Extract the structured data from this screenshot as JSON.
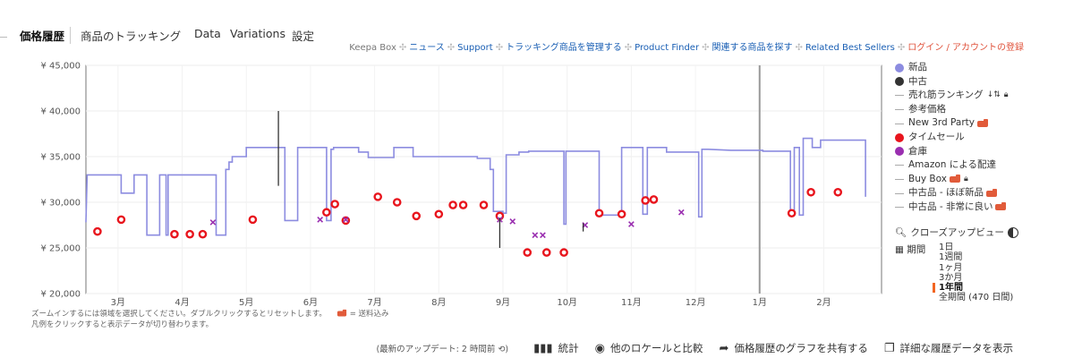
{
  "tabs": [
    "価格履歴",
    "商品のトラッキング",
    "Data",
    "Variations",
    "設定"
  ],
  "links": {
    "items": [
      {
        "label": "Keepa Box",
        "style": "gray"
      },
      {
        "label": "ニュース",
        "style": "blue"
      },
      {
        "label": "Support",
        "style": "blue"
      },
      {
        "label": "トラッキング商品を管理する",
        "style": "blue"
      },
      {
        "label": "Product Finder",
        "style": "blue"
      },
      {
        "label": "関連する商品を探す",
        "style": "blue"
      },
      {
        "label": "Related Best Sellers",
        "style": "blue"
      },
      {
        "label": "ログイン / アカウントの登録",
        "style": "red"
      }
    ],
    "separator": "✣"
  },
  "chart_data": {
    "type": "line",
    "y_tick_labels": [
      "¥ 45,000",
      "¥ 40,000",
      "¥ 35,000",
      "¥ 30,000",
      "¥ 25,000",
      "¥ 20,000"
    ],
    "y_ticks": [
      45000,
      40000,
      35000,
      30000,
      25000,
      20000
    ],
    "ylim": [
      20000,
      45000
    ],
    "x_tick_labels": [
      "3月",
      "4月",
      "5月",
      "6月",
      "7月",
      "8月",
      "9月",
      "10月",
      "11月",
      "12月",
      "1月",
      "2月"
    ],
    "x_ticks": [
      0.5,
      1.5,
      2.5,
      3.5,
      4.5,
      5.5,
      6.5,
      7.5,
      8.5,
      9.5,
      10.5,
      11.5
    ],
    "xlim": [
      0,
      12.4
    ],
    "grid": true,
    "year_divider_x": 10.5,
    "colors": {
      "new": "#8c8ce0",
      "sale": "#e8151d",
      "warehouse": "#9a2fb0",
      "used": "#333333",
      "divider": "#999999"
    },
    "series": [
      {
        "name": "新品",
        "type": "step-line",
        "points": [
          [
            0.0,
            27800
          ],
          [
            0.02,
            33000
          ],
          [
            0.55,
            33000
          ],
          [
            0.55,
            31000
          ],
          [
            0.75,
            31000
          ],
          [
            0.75,
            33000
          ],
          [
            0.95,
            33000
          ],
          [
            0.95,
            26400
          ],
          [
            1.15,
            26400
          ],
          [
            1.15,
            33000
          ],
          [
            1.25,
            33000
          ],
          [
            1.25,
            26400
          ],
          [
            1.28,
            26400
          ],
          [
            1.28,
            33000
          ],
          [
            2.03,
            33000
          ],
          [
            2.03,
            26400
          ],
          [
            2.18,
            26400
          ],
          [
            2.18,
            33600
          ],
          [
            2.23,
            33600
          ],
          [
            2.23,
            34400
          ],
          [
            2.28,
            34400
          ],
          [
            2.28,
            35000
          ],
          [
            2.5,
            35000
          ],
          [
            2.5,
            36000
          ],
          [
            3.1,
            36000
          ],
          [
            3.1,
            28000
          ],
          [
            3.3,
            28000
          ],
          [
            3.3,
            36000
          ],
          [
            3.75,
            36000
          ],
          [
            3.75,
            28000
          ],
          [
            3.82,
            28000
          ],
          [
            3.82,
            35800
          ],
          [
            3.86,
            35800
          ],
          [
            3.86,
            36000
          ],
          [
            4.25,
            36000
          ],
          [
            4.25,
            35500
          ],
          [
            4.4,
            35500
          ],
          [
            4.4,
            34900
          ],
          [
            4.8,
            34900
          ],
          [
            4.8,
            36000
          ],
          [
            5.1,
            36000
          ],
          [
            5.1,
            35000
          ],
          [
            6.1,
            35000
          ],
          [
            6.1,
            34800
          ],
          [
            6.3,
            34800
          ],
          [
            6.3,
            33600
          ],
          [
            6.35,
            33600
          ],
          [
            6.35,
            29000
          ],
          [
            6.5,
            29000
          ],
          [
            6.5,
            28800
          ],
          [
            6.55,
            28800
          ],
          [
            6.55,
            35200
          ],
          [
            6.75,
            35200
          ],
          [
            6.75,
            35500
          ],
          [
            6.9,
            35500
          ],
          [
            6.9,
            35600
          ],
          [
            7.45,
            35600
          ],
          [
            7.45,
            27600
          ],
          [
            7.48,
            27600
          ],
          [
            7.48,
            35600
          ],
          [
            8.0,
            35600
          ],
          [
            8.0,
            28600
          ],
          [
            8.35,
            28600
          ],
          [
            8.35,
            36000
          ],
          [
            8.68,
            36000
          ],
          [
            8.68,
            28700
          ],
          [
            8.75,
            28700
          ],
          [
            8.75,
            36000
          ],
          [
            9.05,
            36000
          ],
          [
            9.05,
            35500
          ],
          [
            9.55,
            35500
          ],
          [
            9.55,
            28400
          ],
          [
            9.6,
            28400
          ],
          [
            9.6,
            35800
          ],
          [
            9.7,
            35800
          ],
          [
            10.05,
            35700
          ],
          [
            10.55,
            35700
          ],
          [
            10.55,
            35600
          ],
          [
            10.98,
            35600
          ],
          [
            10.98,
            28600
          ],
          [
            11.04,
            28600
          ],
          [
            11.04,
            36000
          ],
          [
            11.12,
            36000
          ],
          [
            11.12,
            28600
          ],
          [
            11.18,
            28600
          ],
          [
            11.18,
            37000
          ],
          [
            11.32,
            37000
          ],
          [
            11.32,
            36000
          ],
          [
            11.45,
            36000
          ],
          [
            11.45,
            36800
          ],
          [
            12.15,
            36800
          ],
          [
            12.15,
            30600
          ]
        ]
      },
      {
        "name": "タイムセール",
        "type": "ring-markers",
        "points": [
          [
            0.18,
            26800
          ],
          [
            0.55,
            28100
          ],
          [
            1.38,
            26500
          ],
          [
            1.62,
            26500
          ],
          [
            1.82,
            26500
          ],
          [
            2.6,
            28100
          ],
          [
            3.75,
            28900
          ],
          [
            3.88,
            29800
          ],
          [
            4.05,
            28000
          ],
          [
            4.55,
            30600
          ],
          [
            4.85,
            30000
          ],
          [
            5.15,
            28500
          ],
          [
            5.5,
            28700
          ],
          [
            5.72,
            29700
          ],
          [
            5.88,
            29700
          ],
          [
            6.2,
            29700
          ],
          [
            6.45,
            28500
          ],
          [
            6.88,
            24500
          ],
          [
            7.18,
            24500
          ],
          [
            7.45,
            24500
          ],
          [
            8.0,
            28800
          ],
          [
            8.35,
            28700
          ],
          [
            8.72,
            30200
          ],
          [
            8.85,
            30300
          ],
          [
            11.0,
            28800
          ],
          [
            11.3,
            31100
          ],
          [
            11.72,
            31100
          ]
        ]
      },
      {
        "name": "倉庫",
        "type": "x-markers",
        "points": [
          [
            1.98,
            27800
          ],
          [
            3.65,
            28100
          ],
          [
            4.05,
            28100
          ],
          [
            6.45,
            28100
          ],
          [
            6.65,
            27900
          ],
          [
            7.0,
            26400
          ],
          [
            7.12,
            26400
          ],
          [
            7.78,
            27500
          ],
          [
            8.5,
            27600
          ],
          [
            9.28,
            28900
          ]
        ]
      },
      {
        "name": "中古",
        "type": "vertical-segments",
        "points": [
          [
            [
              3.0,
              31800
            ],
            [
              3.0,
              40000
            ]
          ],
          [
            [
              6.45,
              25000
            ],
            [
              6.45,
              28300
            ]
          ],
          [
            [
              7.75,
              26800
            ],
            [
              7.75,
              27700
            ]
          ]
        ]
      }
    ]
  },
  "legend": [
    {
      "label": "新品",
      "kind": "dot",
      "color": "#8c8ce0"
    },
    {
      "label": "中古",
      "kind": "dot",
      "color": "#333333"
    },
    {
      "label": "売れ筋ランキング",
      "kind": "dash",
      "extra": "sort-lock"
    },
    {
      "label": "参考価格",
      "kind": "dash"
    },
    {
      "label": "New 3rd Party",
      "kind": "dash",
      "extra": "truck"
    },
    {
      "label": "タイムセール",
      "kind": "dot",
      "color": "#e8151d"
    },
    {
      "label": "倉庫",
      "kind": "dot",
      "color": "#9a2fb0"
    },
    {
      "label": "Amazon による配達",
      "kind": "dash"
    },
    {
      "label": "Buy Box",
      "kind": "dash",
      "extra": "truck-lock"
    },
    {
      "label": "中古品 - ほぼ新品",
      "kind": "dash",
      "extra": "truck"
    },
    {
      "label": "中古品 - 非常に良い",
      "kind": "dash",
      "extra": "truck"
    }
  ],
  "closeup_label": "クローズアップビュー",
  "period": {
    "label": "期間",
    "options": [
      "1日",
      "1週間",
      "1ヶ月",
      "3か月",
      "1年間",
      "全期間 (470 日間)"
    ],
    "selected": "1年間"
  },
  "notes": {
    "line1": "ズームインするには領域を選択してください。ダブルクリックするとリセットします。",
    "shipping": "= 送料込み",
    "line2": "凡例をクリックすると表示データが切り替わります。"
  },
  "bottom": {
    "update": "(最新のアップデート: 2 時間前 ⟲)",
    "stats": "統計",
    "compare": "他のロケールと比較",
    "share": "価格履歴のグラフを共有する",
    "details": "詳細な履歴データを表示"
  }
}
